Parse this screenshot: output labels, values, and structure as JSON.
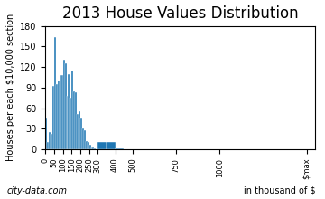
{
  "chart_data": {
    "type": "histogram",
    "title": "2013 House Values Distribution",
    "xlabel": "in thousand of $",
    "ylabel": "Houses per each $10,000 section",
    "annotations": [
      "city-data.com"
    ],
    "bins": [
      0,
      10,
      20,
      30,
      40,
      50,
      60,
      70,
      80,
      90,
      100,
      110,
      120,
      130,
      140,
      150,
      160,
      170,
      180,
      190,
      200,
      210,
      220,
      230,
      240,
      250,
      260,
      270,
      280,
      290,
      300,
      350,
      400,
      450,
      500,
      750,
      1000,
      1500
    ],
    "values": [
      45,
      10,
      25,
      22,
      93,
      163,
      95,
      100,
      108,
      108,
      130,
      125,
      78,
      110,
      75,
      115,
      85,
      83,
      52,
      55,
      45,
      30,
      28,
      12,
      10,
      7,
      3,
      2,
      1,
      0,
      10,
      11,
      1,
      0.5,
      0,
      0,
      0
    ],
    "xlim": [
      0,
      1550
    ],
    "xticks": [
      0,
      50,
      100,
      150,
      200,
      250,
      300,
      400,
      500,
      750,
      1000,
      {
        "value": 1500,
        "label": "$max"
      }
    ],
    "ylim": [
      0,
      180
    ],
    "yticks": [
      0,
      30,
      60,
      90,
      120,
      150,
      180
    ],
    "grid": false
  }
}
